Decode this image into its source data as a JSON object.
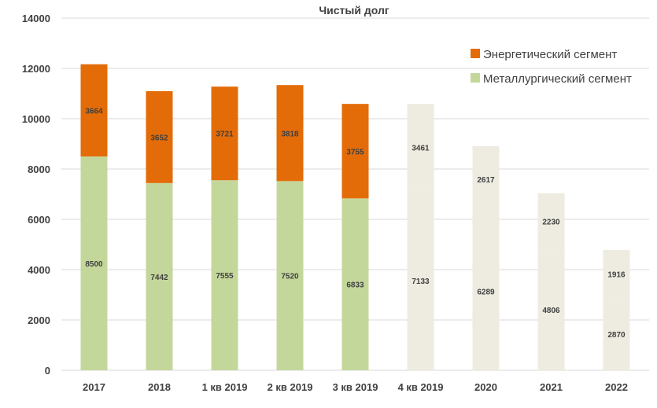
{
  "chart_data": {
    "type": "bar",
    "stacked": true,
    "title": "Чистый долг",
    "categories": [
      "2017",
      "2018",
      "1 кв 2019",
      "2 кв 2019",
      "3 кв 2019",
      "4 кв 2019",
      "2020",
      "2021",
      "2022"
    ],
    "series": [
      {
        "name": "Металлургический сегмент",
        "values": [
          8500,
          7442,
          7555,
          7520,
          6833,
          7133,
          6289,
          4806,
          2870
        ],
        "color": "#c4d79b"
      },
      {
        "name": "Энергетический сегмент",
        "values": [
          3664,
          3652,
          3721,
          3818,
          3755,
          3461,
          2617,
          2230,
          1916
        ],
        "color": "#e36c09"
      }
    ],
    "forecast_from_index": 5,
    "forecast_color": "#eeece1",
    "ylim": [
      0,
      14000
    ],
    "yticks": [
      0,
      2000,
      4000,
      6000,
      8000,
      10000,
      12000,
      14000
    ],
    "grid": true,
    "grid_color": "#d9d9d9",
    "legend_position": "top-right",
    "legend_order": [
      "Энергетический сегмент",
      "Металлургический сегмент"
    ]
  }
}
